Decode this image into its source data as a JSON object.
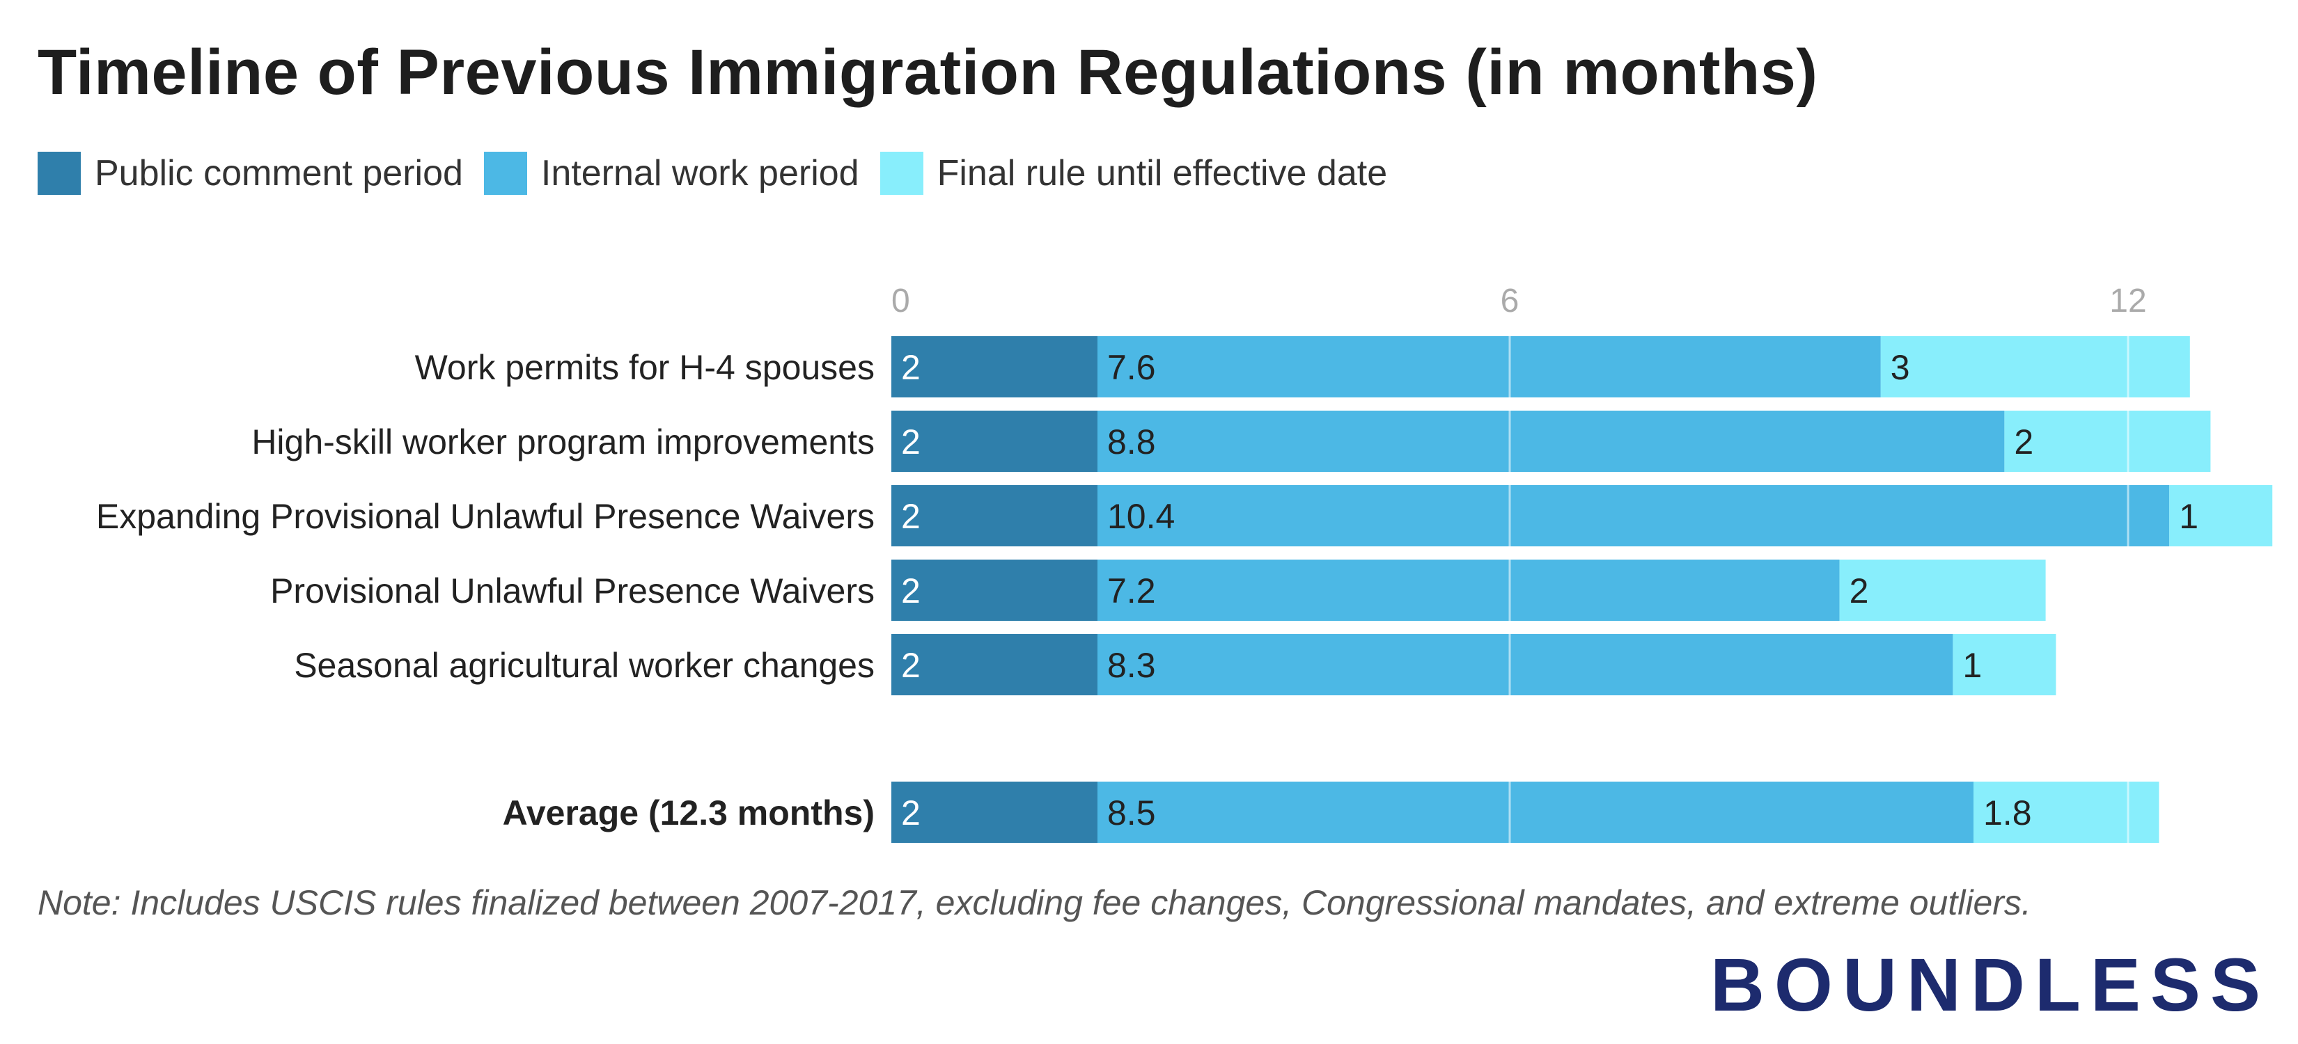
{
  "title": "Timeline of Previous Immigration Regulations (in months)",
  "legend": [
    {
      "label": "Public comment period",
      "color": "#2f7fab"
    },
    {
      "label": "Internal work period",
      "color": "#4cb8e5"
    },
    {
      "label": "Final rule until effective date",
      "color": "#88eefc"
    }
  ],
  "chart_data": {
    "type": "bar",
    "orientation": "horizontal",
    "stacked": true,
    "title": "Timeline of Previous Immigration Regulations (in months)",
    "categories": [
      "Work permits for H-4 spouses",
      "High-skill worker program improvements",
      "Expanding Provisional Unlawful Presence Waivers",
      "Provisional Unlawful Presence Waivers",
      "Seasonal agricultural worker changes",
      "Average (12.3 months)"
    ],
    "bold_categories": [
      "Average (12.3 months)"
    ],
    "series": [
      {
        "name": "Public comment period",
        "color": "#2f7fab",
        "values": [
          2,
          2,
          2,
          2,
          2,
          2
        ]
      },
      {
        "name": "Internal work period",
        "color": "#4cb8e5",
        "values": [
          7.6,
          8.8,
          10.4,
          7.2,
          8.3,
          8.5
        ]
      },
      {
        "name": "Final rule until effective date",
        "color": "#88eefc",
        "values": [
          3,
          2,
          1,
          2,
          1,
          1.8
        ]
      }
    ],
    "data_labels": [
      [
        "2",
        "2",
        "2",
        "2",
        "2",
        "2"
      ],
      [
        "7.6",
        "8.8",
        "10.4",
        "7.2",
        "8.3",
        "8.5"
      ],
      [
        "3",
        "2",
        "1",
        "2",
        "1",
        "1.8"
      ]
    ],
    "x_ticks": [
      "0",
      "6",
      "12"
    ],
    "x_tick_values": [
      0,
      6,
      12
    ],
    "xlim": [
      0,
      13.6
    ],
    "grid": true,
    "legend_position": "top-left"
  },
  "note": "Note: Includes USCIS rules finalized between 2007-2017, excluding fee changes, Congressional mandates, and extreme outliers.",
  "brand": "BOUNDLESS"
}
